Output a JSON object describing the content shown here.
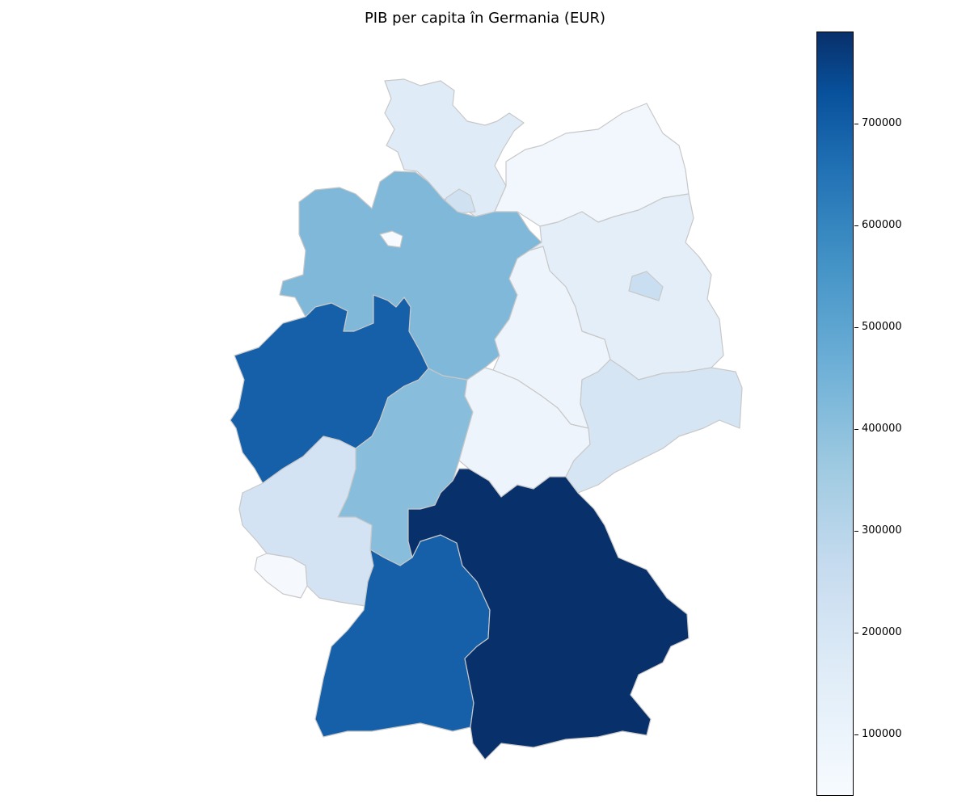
{
  "title": "PIB per capita în Germania (EUR)",
  "colorbar": {
    "colormap": "Blues",
    "min": 40000,
    "max": 790000,
    "ticks": [
      "100000",
      "200000",
      "300000",
      "400000",
      "500000",
      "600000",
      "700000"
    ]
  },
  "regions": [
    {
      "name": "Schleswig-Holstein",
      "color": "#dfebf7"
    },
    {
      "name": "Hamburg",
      "color": "#d0e2f2"
    },
    {
      "name": "Mecklenburg-Vorpommern",
      "color": "#f1f7fd"
    },
    {
      "name": "Niedersachsen",
      "color": "#80b8d9"
    },
    {
      "name": "Bremen",
      "color": "#f7fbff"
    },
    {
      "name": "Brandenburg",
      "color": "#e4eef8"
    },
    {
      "name": "Berlin",
      "color": "#c9dff1"
    },
    {
      "name": "Sachsen-Anhalt",
      "color": "#edf4fc"
    },
    {
      "name": "Nordrhein-Westfalen",
      "color": "#1560a9"
    },
    {
      "name": "Hessen",
      "color": "#88bddc"
    },
    {
      "name": "Thüringen",
      "color": "#edf4fc"
    },
    {
      "name": "Sachsen",
      "color": "#d5e5f4"
    },
    {
      "name": "Rheinland-Pfalz",
      "color": "#d3e3f3"
    },
    {
      "name": "Saarland",
      "color": "#f5f9fe"
    },
    {
      "name": "Baden-Württemberg",
      "color": "#1560a9"
    },
    {
      "name": "Bayern",
      "color": "#08306b"
    }
  ]
}
